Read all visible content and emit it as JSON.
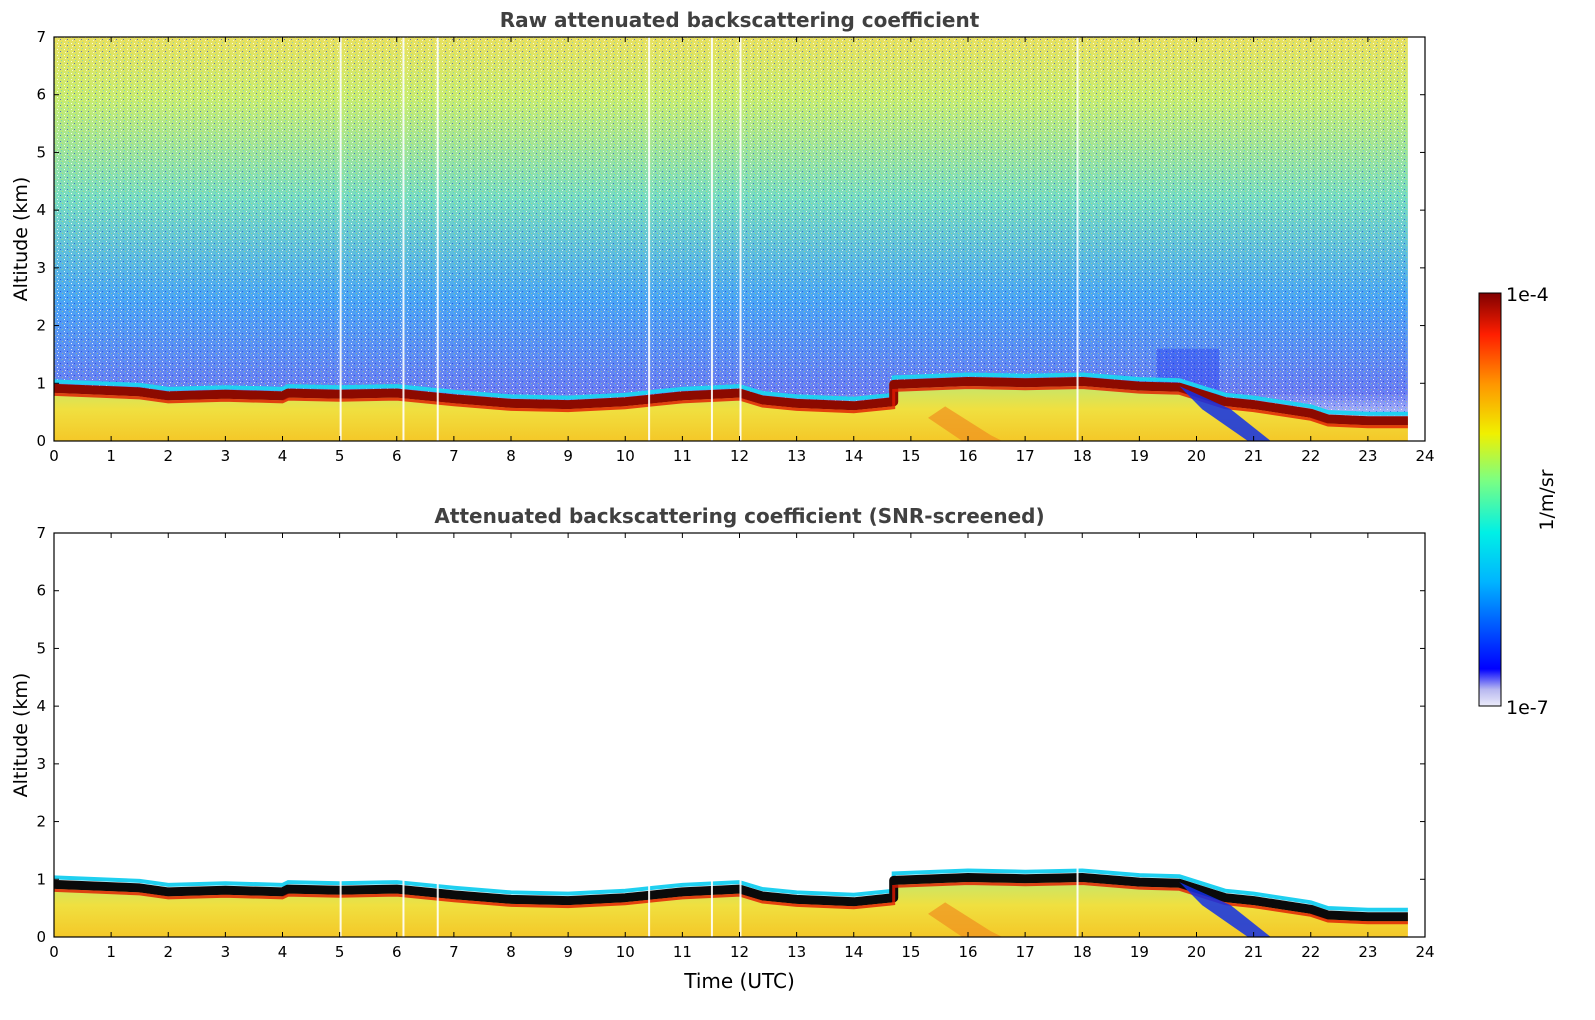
{
  "chart_data": [
    {
      "type": "heatmap",
      "title": "Raw attenuated backscattering coefficient",
      "xlabel": "",
      "ylabel": "Altitude (km)",
      "xlim": [
        0,
        24
      ],
      "ylim": [
        0,
        7
      ],
      "x_ticks": [
        "0",
        "1",
        "2",
        "3",
        "4",
        "5",
        "6",
        "7",
        "8",
        "9",
        "10",
        "11",
        "12",
        "13",
        "14",
        "15",
        "16",
        "17",
        "18",
        "19",
        "20",
        "21",
        "22",
        "23",
        "24"
      ],
      "y_ticks": [
        "0",
        "1",
        "2",
        "3",
        "4",
        "5",
        "6",
        "7"
      ],
      "data_end_hour": 23.7,
      "noise": "high",
      "layer_top_km": [
        [
          0,
          0.98
        ],
        [
          1.5,
          0.92
        ],
        [
          2,
          0.85
        ],
        [
          3,
          0.88
        ],
        [
          4,
          0.85
        ],
        [
          4.1,
          0.9
        ],
        [
          5,
          0.88
        ],
        [
          6,
          0.9
        ],
        [
          7,
          0.8
        ],
        [
          8,
          0.72
        ],
        [
          9,
          0.7
        ],
        [
          10,
          0.75
        ],
        [
          10.5,
          0.8
        ],
        [
          11,
          0.85
        ],
        [
          12,
          0.9
        ],
        [
          12.4,
          0.78
        ],
        [
          13,
          0.72
        ],
        [
          14,
          0.68
        ],
        [
          14.7,
          0.75
        ],
        [
          14.7,
          1.05
        ],
        [
          16,
          1.1
        ],
        [
          17,
          1.08
        ],
        [
          18,
          1.1
        ],
        [
          19,
          1.02
        ],
        [
          19.7,
          1.0
        ],
        [
          20.5,
          0.75
        ],
        [
          21,
          0.7
        ],
        [
          22,
          0.55
        ],
        [
          22.3,
          0.45
        ],
        [
          23,
          0.42
        ],
        [
          23.7,
          0.42
        ]
      ]
    },
    {
      "type": "heatmap",
      "title": "Attenuated backscattering coefficient (SNR-screened)",
      "xlabel": "Time (UTC)",
      "ylabel": "Altitude (km)",
      "xlim": [
        0,
        24
      ],
      "ylim": [
        0,
        7
      ],
      "x_ticks": [
        "0",
        "1",
        "2",
        "3",
        "4",
        "5",
        "6",
        "7",
        "8",
        "9",
        "10",
        "11",
        "12",
        "13",
        "14",
        "15",
        "16",
        "17",
        "18",
        "19",
        "20",
        "21",
        "22",
        "23",
        "24"
      ],
      "y_ticks": [
        "0",
        "1",
        "2",
        "3",
        "4",
        "5",
        "6",
        "7"
      ],
      "data_end_hour": 23.7,
      "noise": "screened",
      "layer_top_km": [
        [
          0,
          0.98
        ],
        [
          1.5,
          0.92
        ],
        [
          2,
          0.85
        ],
        [
          3,
          0.88
        ],
        [
          4,
          0.85
        ],
        [
          4.1,
          0.9
        ],
        [
          5,
          0.88
        ],
        [
          6,
          0.9
        ],
        [
          7,
          0.8
        ],
        [
          8,
          0.72
        ],
        [
          9,
          0.7
        ],
        [
          10,
          0.75
        ],
        [
          10.5,
          0.8
        ],
        [
          11,
          0.85
        ],
        [
          12,
          0.9
        ],
        [
          12.4,
          0.78
        ],
        [
          13,
          0.72
        ],
        [
          14,
          0.68
        ],
        [
          14.7,
          0.75
        ],
        [
          14.7,
          1.05
        ],
        [
          16,
          1.1
        ],
        [
          17,
          1.08
        ],
        [
          18,
          1.1
        ],
        [
          19,
          1.02
        ],
        [
          19.7,
          1.0
        ],
        [
          20.5,
          0.75
        ],
        [
          21,
          0.7
        ],
        [
          22,
          0.55
        ],
        [
          22.3,
          0.45
        ],
        [
          23,
          0.42
        ],
        [
          23.7,
          0.42
        ]
      ]
    }
  ],
  "colorbar": {
    "max_label": "1e-4",
    "min_label": "1e-7",
    "unit_label": "1/m/sr",
    "range": [
      1e-07,
      0.0001
    ],
    "scale": "log",
    "colors": [
      "#e8e8f8",
      "#0000ff",
      "#00ffff",
      "#ffff00",
      "#ff0000",
      "#800000"
    ]
  }
}
